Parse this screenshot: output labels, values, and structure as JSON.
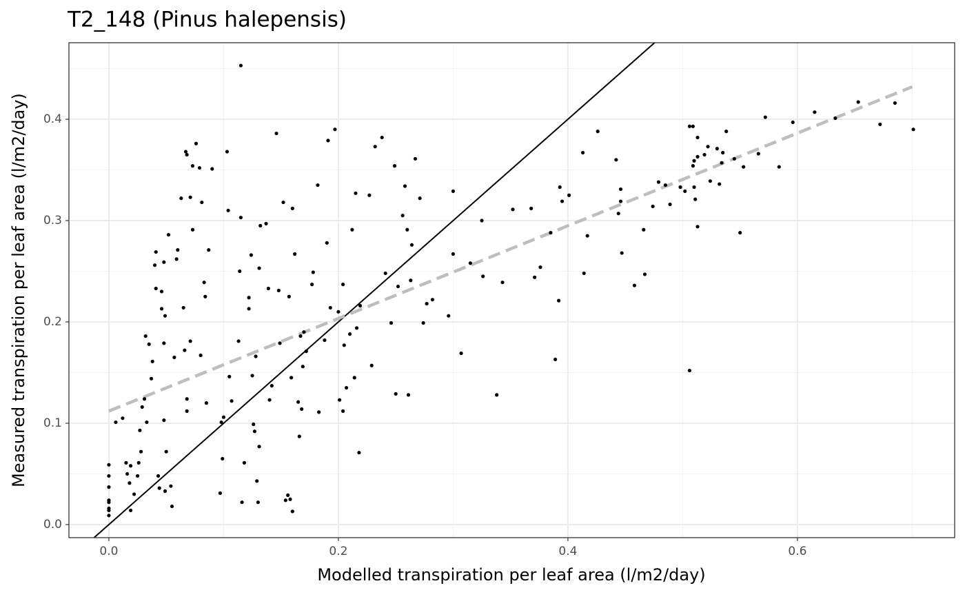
{
  "chart_data": {
    "type": "scatter",
    "title": "T2_148 (Pinus halepensis)",
    "x_label": "Modelled transpiration per leaf area (l/m2/day)",
    "y_label": "Measured transpiration per leaf area (l/m2/day)",
    "xlim": [
      -0.0348,
      0.737
    ],
    "ylim": [
      -0.0129,
      0.4755
    ],
    "xticks": [
      {
        "value": 0,
        "label": "0.0"
      },
      0.2,
      0.4,
      0.6
    ],
    "yticks": [
      {
        "value": 0,
        "label": "0.0"
      },
      0.1,
      0.2,
      0.3,
      0.4
    ],
    "grid": true,
    "minor_grid": true,
    "color": "#000000",
    "identity_line": {
      "slope": 1,
      "intercept": 0,
      "color": "#000000"
    },
    "fit_line": {
      "x": [
        0,
        0.7
      ],
      "y": [
        0.112,
        0.432
      ],
      "color": "#bebebe",
      "dashed": true
    },
    "x": [
      0,
      0,
      0,
      0,
      0,
      0,
      0,
      0,
      0.006,
      0.012,
      0.015,
      0.016,
      0.018,
      0.019,
      0.019,
      0.022,
      0.025,
      0.026,
      0.028,
      0.027,
      0.029,
      0.031,
      0.032,
      0.033,
      0.035,
      0.037,
      0.038,
      0.04,
      0.041,
      0.041,
      0.043,
      0.044,
      0.046,
      0.046,
      0.048,
      0.048,
      0.048,
      0.049,
      0.05,
      0.049,
      0.052,
      0.054,
      0.055,
      0.057,
      0.059,
      0.06,
      0.063,
      0.065,
      0.066,
      0.067,
      0.068,
      0.068,
      0.068,
      0.071,
      0.071,
      0.073,
      0.073,
      0.076,
      0.079,
      0.08,
      0.081,
      0.083,
      0.084,
      0.085,
      0.087,
      0.09,
      0.097,
      0.098,
      0.1,
      0.099,
      0.103,
      0.104,
      0.105,
      0.107,
      0.113,
      0.114,
      0.115,
      0.115,
      0.116,
      0.118,
      0.122,
      0.122,
      0.124,
      0.125,
      0.126,
      0.127,
      0.128,
      0.129,
      0.13,
      0.131,
      0.131,
      0.132,
      0.137,
      0.139,
      0.14,
      0.142,
      0.146,
      0.148,
      0.149,
      0.152,
      0.154,
      0.156,
      0.158,
      0.157,
      0.159,
      0.16,
      0.16,
      0.162,
      0.165,
      0.166,
      0.167,
      0.168,
      0.169,
      0.17,
      0.172,
      0.177,
      0.178,
      0.182,
      0.183,
      0.188,
      0.19,
      0.191,
      0.193,
      0.197,
      0.2,
      0.201,
      0.204,
      0.204,
      0.205,
      0.207,
      0.21,
      0.212,
      0.214,
      0.215,
      0.216,
      0.218,
      0.219,
      0.227,
      0.229,
      0.232,
      0.238,
      0.241,
      0.246,
      0.249,
      0.25,
      0.252,
      0.256,
      0.258,
      0.26,
      0.261,
      0.263,
      0.264,
      0.267,
      0.271,
      0.274,
      0.277,
      0.282,
      0.296,
      0.3,
      0.3,
      0.307,
      0.315,
      0.325,
      0.326,
      0.338,
      0.343,
      0.352,
      0.368,
      0.371,
      0.376,
      0.385,
      0.389,
      0.392,
      0.393,
      0.395,
      0.401,
      0.413,
      0.414,
      0.417,
      0.426,
      0.442,
      0.444,
      0.446,
      0.446,
      0.447,
      0.458,
      0.466,
      0.467,
      0.474,
      0.479,
      0.485,
      0.489,
      0.498,
      0.502,
      0.506,
      0.506,
      0.509,
      0.509,
      0.51,
      0.51,
      0.511,
      0.513,
      0.513,
      0.513,
      0.519,
      0.522,
      0.524,
      0.53,
      0.532,
      0.534,
      0.535,
      0.538,
      0.545,
      0.55,
      0.553,
      0.566,
      0.572,
      0.584,
      0.596,
      0.615,
      0.633,
      0.653,
      0.672,
      0.685,
      0.701
    ],
    "values": [
      0.059,
      0.048,
      0.037,
      0.024,
      0.022,
      0.016,
      0.014,
      0.009,
      0.101,
      0.105,
      0.061,
      0.05,
      0.041,
      0.058,
      0.014,
      0.03,
      0.048,
      0.061,
      0.072,
      0.093,
      0.116,
      0.124,
      0.186,
      0.101,
      0.178,
      0.144,
      0.161,
      0.256,
      0.269,
      0.233,
      0.048,
      0.036,
      0.213,
      0.23,
      0.259,
      0.179,
      0.103,
      0.206,
      0.072,
      0.033,
      0.286,
      0.038,
      0.018,
      0.165,
      0.262,
      0.271,
      0.322,
      0.214,
      0.172,
      0.368,
      0.365,
      0.124,
      0.112,
      0.323,
      0.181,
      0.354,
      0.291,
      0.376,
      0.352,
      0.167,
      0.318,
      0.239,
      0.225,
      0.12,
      0.271,
      0.351,
      0.031,
      0.101,
      0.106,
      0.065,
      0.368,
      0.31,
      0.146,
      0.122,
      0.181,
      0.25,
      0.453,
      0.303,
      0.022,
      0.061,
      0.213,
      0.224,
      0.266,
      0.147,
      0.099,
      0.092,
      0.166,
      0.043,
      0.022,
      0.077,
      0.253,
      0.295,
      0.297,
      0.233,
      0.123,
      0.137,
      0.386,
      0.231,
      0.179,
      0.318,
      0.024,
      0.029,
      0.025,
      0.225,
      0.145,
      0.312,
      0.013,
      0.267,
      0.121,
      0.087,
      0.186,
      0.114,
      0.156,
      0.19,
      0.171,
      0.237,
      0.249,
      0.335,
      0.111,
      0.182,
      0.278,
      0.379,
      0.214,
      0.39,
      0.21,
      0.123,
      0.112,
      0.237,
      0.177,
      0.135,
      0.188,
      0.291,
      0.145,
      0.327,
      0.194,
      0.071,
      0.216,
      0.325,
      0.157,
      0.373,
      0.382,
      0.248,
      0.199,
      0.354,
      0.129,
      0.235,
      0.305,
      0.334,
      0.291,
      0.128,
      0.241,
      0.276,
      0.361,
      0.322,
      0.199,
      0.218,
      0.222,
      0.206,
      0.329,
      0.267,
      0.169,
      0.258,
      0.3,
      0.245,
      0.128,
      0.239,
      0.311,
      0.312,
      0.244,
      0.254,
      0.288,
      0.163,
      0.221,
      0.333,
      0.319,
      0.325,
      0.367,
      0.248,
      0.285,
      0.388,
      0.36,
      0.307,
      0.331,
      0.319,
      0.268,
      0.236,
      0.291,
      0.247,
      0.314,
      0.338,
      0.335,
      0.316,
      0.333,
      0.329,
      0.152,
      0.393,
      0.393,
      0.354,
      0.359,
      0.333,
      0.321,
      0.382,
      0.363,
      0.294,
      0.365,
      0.373,
      0.339,
      0.371,
      0.336,
      0.357,
      0.367,
      0.388,
      0.361,
      0.288,
      0.353,
      0.366,
      0.402,
      0.353,
      0.397,
      0.407,
      0.401,
      0.417,
      0.395,
      0.416,
      0.39
    ]
  }
}
